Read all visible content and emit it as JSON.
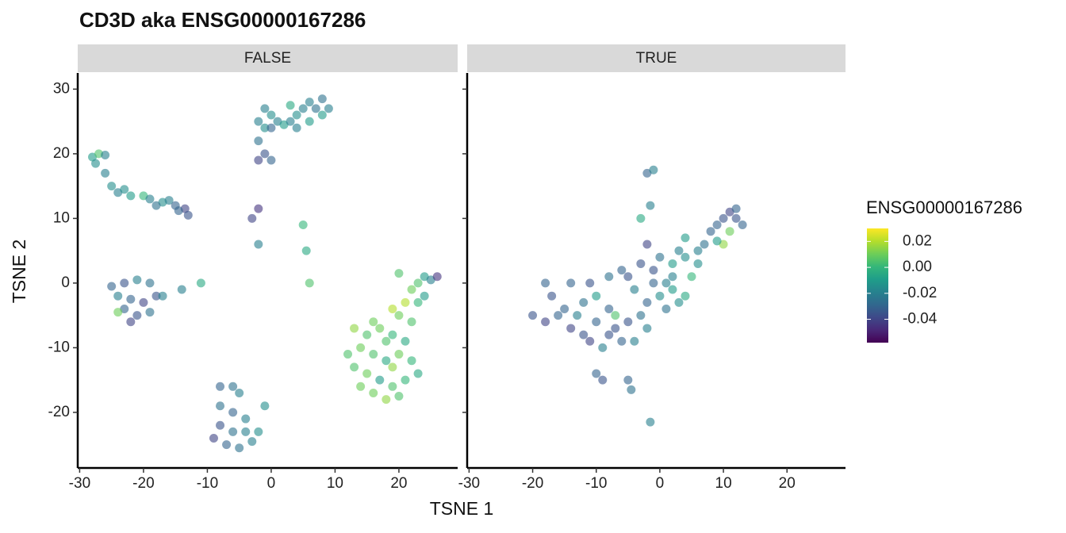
{
  "chart_data": {
    "type": "scatter",
    "title": "CD3D  aka ENSG00000167286",
    "xlabel": "TSNE 1",
    "ylabel": "TSNE 2",
    "xlim": [
      -30.3,
      29.2
    ],
    "ylim": [
      -28.6,
      32.5
    ],
    "xticks": [
      -30,
      -20,
      -10,
      0,
      10,
      20
    ],
    "yticks": [
      -20,
      -10,
      0,
      10,
      20,
      30
    ],
    "colormap": "viridis",
    "opacity": 0.6,
    "colorbar": {
      "title": "ENSG00000167286",
      "lim": [
        -0.058,
        0.03
      ],
      "ticks": [
        0.02,
        {
          "value": 0,
          "label": "0.00"
        },
        -0.02,
        -0.04
      ]
    },
    "facets": [
      {
        "label": "FALSE",
        "x": [
          -28,
          -27,
          -26,
          -27.5,
          -26,
          -25,
          -24,
          -22,
          -20,
          -19,
          -17,
          -16,
          -15,
          -13.5,
          -13,
          -14.5,
          -18,
          -23,
          -25,
          -23,
          -21,
          -19,
          -24,
          -22,
          -20,
          -18,
          -23,
          -21,
          -22,
          -24,
          -19,
          -14,
          -11,
          -17,
          -2,
          -1,
          -2,
          0,
          -1,
          0,
          -2,
          1,
          2,
          3,
          4,
          5,
          6,
          7,
          8,
          9,
          8,
          6,
          -1,
          0,
          4,
          3,
          -3,
          -2,
          -2,
          5,
          5.5,
          6,
          15,
          17,
          19,
          21,
          14,
          16,
          18,
          20,
          22,
          13,
          15,
          17,
          19,
          21,
          16,
          18,
          20,
          23,
          14,
          12,
          22,
          20,
          21,
          19,
          22,
          23,
          24,
          25,
          26,
          24,
          20,
          23,
          18,
          16,
          19,
          13,
          -8,
          -6,
          -5,
          -8,
          -6,
          -4,
          -8,
          -6,
          -4,
          -7,
          -5,
          -9,
          -2,
          -1,
          -3
        ],
        "y": [
          19.5,
          20,
          19.8,
          18.5,
          17,
          15,
          14,
          13.5,
          13.5,
          13,
          12.5,
          12.8,
          12,
          11.5,
          10.5,
          11.2,
          12,
          14.5,
          -0.5,
          0,
          0.5,
          0,
          -2,
          -2.5,
          -3,
          -2,
          -4,
          -5,
          -6,
          -4.5,
          -4.5,
          -1,
          0,
          -2,
          25,
          24,
          22,
          24,
          20,
          19,
          19,
          25,
          24.5,
          25,
          26,
          27,
          28,
          27,
          26,
          27,
          28.5,
          25,
          27,
          26,
          24,
          27.5,
          10,
          11.5,
          6,
          9,
          5,
          0,
          -8,
          -7,
          -8,
          -9,
          -10,
          -11,
          -12,
          -11,
          -12,
          -13,
          -14,
          -15,
          -16,
          -15,
          -17,
          -18,
          -17.5,
          -14,
          -16,
          -11,
          -6,
          -5,
          -3,
          -4,
          -1,
          0,
          1,
          0.5,
          1,
          -2,
          1.5,
          -3,
          -9,
          -6,
          -13,
          -7,
          -16,
          -16,
          -17,
          -19,
          -20,
          -21,
          -22,
          -23,
          -23,
          -25,
          -25.5,
          -24,
          -23,
          -19,
          -24.5
        ],
        "values": [
          -0.01,
          0.005,
          -0.02,
          -0.015,
          -0.02,
          -0.015,
          -0.02,
          -0.01,
          0,
          -0.02,
          -0.015,
          -0.02,
          -0.03,
          -0.04,
          -0.035,
          -0.03,
          -0.025,
          -0.015,
          -0.03,
          -0.035,
          -0.02,
          -0.025,
          -0.02,
          -0.03,
          -0.04,
          -0.035,
          -0.03,
          -0.035,
          -0.04,
          0.01,
          -0.025,
          -0.02,
          -0.005,
          -0.02,
          -0.02,
          -0.015,
          -0.025,
          -0.03,
          -0.035,
          -0.03,
          -0.04,
          -0.02,
          -0.01,
          -0.02,
          -0.015,
          -0.02,
          -0.02,
          -0.025,
          -0.01,
          -0.02,
          -0.025,
          -0.01,
          -0.02,
          -0.015,
          -0.02,
          -0.005,
          -0.04,
          -0.045,
          -0.02,
          0,
          -0.005,
          0.005,
          0.005,
          0.01,
          0,
          -0.005,
          0.01,
          0.005,
          -0.005,
          0.01,
          0,
          0.005,
          0.01,
          -0.01,
          0.005,
          0,
          0.01,
          0.015,
          0.005,
          -0.005,
          0.01,
          0.005,
          0.005,
          0.01,
          0.02,
          0.02,
          0.01,
          0.005,
          -0.01,
          -0.02,
          -0.045,
          -0.01,
          0.005,
          0,
          0.005,
          0.01,
          0.015,
          0.015,
          -0.03,
          -0.025,
          -0.02,
          -0.025,
          -0.03,
          -0.02,
          -0.035,
          -0.025,
          -0.02,
          -0.03,
          -0.025,
          -0.04,
          -0.015,
          -0.015,
          -0.02
        ]
      },
      {
        "label": "TRUE",
        "x": [
          -2,
          -1,
          -1.5,
          -3,
          -2,
          -3,
          -6,
          -8,
          -11,
          -14,
          -18,
          -17,
          -20,
          -18,
          -16,
          -14,
          -12,
          -10,
          -12,
          -10,
          -8,
          -7,
          -6,
          -4,
          -5,
          -3,
          -2,
          -4,
          -1,
          0,
          1,
          2,
          3,
          1,
          -1,
          2,
          3,
          4,
          5,
          4,
          6,
          7,
          8,
          9,
          10,
          11,
          12,
          13,
          11,
          10,
          9,
          12,
          -9,
          -10,
          -9,
          -5,
          -4.5,
          -1.5,
          -7,
          -15,
          -13,
          -11,
          -5,
          0,
          2,
          -8,
          -2,
          6,
          4
        ],
        "y": [
          17,
          17.5,
          12,
          10,
          6,
          3,
          2,
          1,
          0,
          0,
          0,
          -2,
          -5,
          -6,
          -5,
          -7,
          -8,
          -6,
          -3,
          -2,
          -4,
          -7,
          -9,
          -9,
          -6,
          -5,
          -3,
          -1,
          0,
          -2,
          0,
          -1,
          -3,
          -4,
          2,
          3,
          5,
          4,
          1,
          -2,
          5,
          6,
          8,
          9,
          10,
          11,
          10,
          9,
          8,
          6,
          6.5,
          11.5,
          -10,
          -14,
          -15,
          -15,
          -16.5,
          -21.5,
          -5,
          -4,
          -5,
          -9,
          1,
          4,
          1,
          -8,
          -7,
          3,
          7
        ],
        "values": [
          -0.03,
          -0.02,
          -0.02,
          -0.005,
          -0.04,
          -0.035,
          -0.03,
          -0.025,
          -0.035,
          -0.03,
          -0.03,
          -0.035,
          -0.035,
          -0.04,
          -0.03,
          -0.04,
          -0.035,
          -0.03,
          -0.025,
          -0.01,
          -0.03,
          -0.035,
          -0.03,
          -0.02,
          -0.035,
          -0.025,
          -0.03,
          -0.02,
          -0.03,
          -0.015,
          -0.02,
          -0.01,
          -0.015,
          -0.025,
          -0.035,
          -0.01,
          -0.02,
          -0.015,
          0,
          -0.005,
          -0.02,
          -0.025,
          -0.03,
          -0.03,
          -0.035,
          -0.04,
          -0.035,
          -0.03,
          0.01,
          0.015,
          -0.01,
          -0.03,
          -0.02,
          -0.03,
          -0.035,
          -0.03,
          -0.025,
          -0.02,
          0.005,
          -0.03,
          -0.02,
          -0.04,
          -0.035,
          -0.025,
          -0.02,
          -0.035,
          -0.02,
          -0.015,
          -0.01
        ]
      }
    ]
  }
}
